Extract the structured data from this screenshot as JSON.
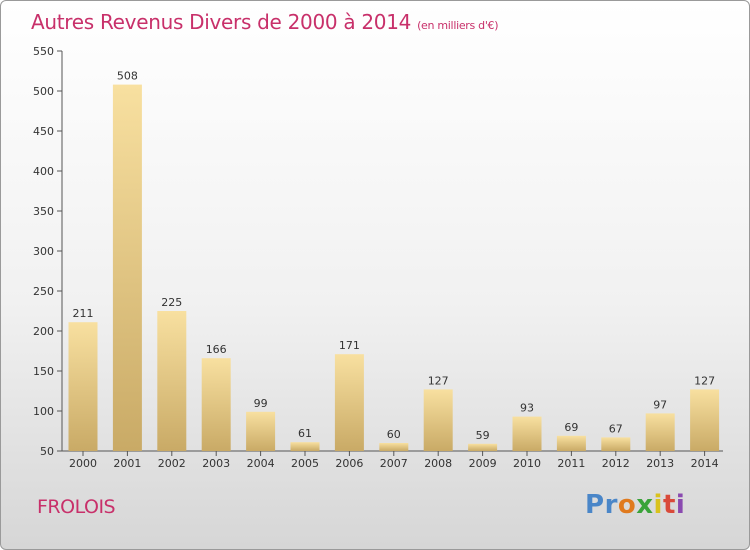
{
  "header": {
    "title": "Autres Revenus Divers de 2000 à 2014",
    "subtitle": "(en milliers d'€)"
  },
  "footer": {
    "commune": "FROLOIS",
    "logo": [
      "P",
      "r",
      "o",
      "x",
      "i",
      "t",
      "i"
    ]
  },
  "colors": {
    "title": "#c8306a",
    "bar_light": "#f8e0a0",
    "bar_dark": "#c9aa66",
    "logo": [
      "#4a86c8",
      "#4a86c8",
      "#e07a1e",
      "#3aa33a",
      "#d9c21d",
      "#d94a3a",
      "#8a4ab0"
    ]
  },
  "chart_data": {
    "type": "bar",
    "title": "Autres Revenus Divers de 2000 à 2014",
    "subtitle": "(en milliers d'€)",
    "categories": [
      "2000",
      "2001",
      "2002",
      "2003",
      "2004",
      "2005",
      "2006",
      "2007",
      "2008",
      "2009",
      "2010",
      "2011",
      "2012",
      "2013",
      "2014"
    ],
    "values": [
      211,
      508,
      225,
      166,
      99,
      61,
      171,
      60,
      127,
      59,
      93,
      69,
      67,
      97,
      127
    ],
    "ylim": [
      50,
      550
    ],
    "yticks": [
      50,
      100,
      150,
      200,
      250,
      300,
      350,
      400,
      450,
      500,
      550
    ],
    "grid": false,
    "xlabel": "",
    "ylabel": ""
  }
}
